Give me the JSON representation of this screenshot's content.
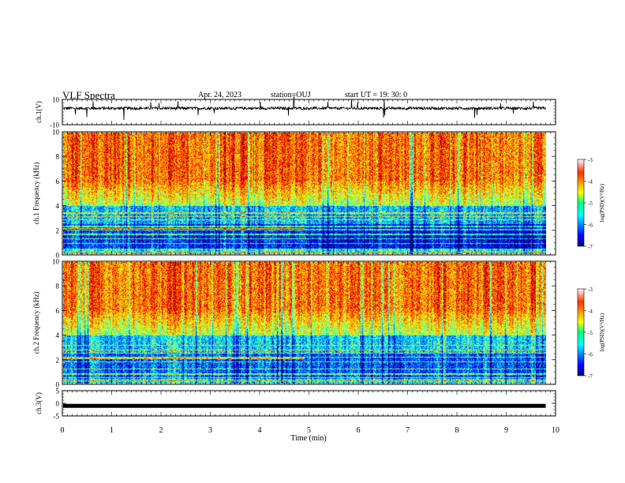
{
  "header": {
    "title": "VLF Spectra",
    "date": "Apr. 24, 2023",
    "station": "station=OUJ",
    "start": "start  UT =   19: 30: 0"
  },
  "chart_data": [
    {
      "type": "line",
      "panel": "ch1-waveform",
      "ylabel": "ch.1(V)",
      "ylim": [
        -10,
        10
      ],
      "yticks": [
        "10",
        "-10"
      ],
      "xlim": [
        0,
        10
      ],
      "note_series": "noisy waveform centered near +3 V with amplitude about +/-2 V and sparse spikes"
    },
    {
      "type": "heatmap",
      "panel": "ch1-spectrogram",
      "ylabel": "ch.1 Frequency (kHz)",
      "ylim": [
        0,
        10
      ],
      "yticks": [
        "0",
        "2",
        "4",
        "6",
        "8",
        "10"
      ],
      "xlim": [
        0,
        10
      ],
      "data_end_min": 9.8,
      "colorbar": {
        "label": "log(PSD)(V²/Hz)",
        "range": [
          -7,
          -3
        ],
        "ticks": [
          "-3",
          "-4",
          "-5",
          "-6",
          "-7"
        ]
      }
    },
    {
      "type": "heatmap",
      "panel": "ch2-spectrogram",
      "ylabel": "ch.2 Frequency (kHz)",
      "ylim": [
        0,
        10
      ],
      "yticks": [
        "0",
        "2",
        "4",
        "6",
        "8",
        "10"
      ],
      "xlim": [
        0,
        10
      ],
      "data_end_min": 9.8,
      "colorbar": {
        "label": "log(PSD)(V²/Hz)",
        "range": [
          -7,
          -3
        ],
        "ticks": [
          "-3",
          "-4",
          "-5",
          "-6",
          "-7"
        ]
      }
    },
    {
      "type": "line",
      "panel": "ch3-waveform",
      "ylabel": "ch.3(V)",
      "ylim": [
        -5,
        5
      ],
      "yticks": [
        "5",
        "0",
        "-5"
      ],
      "xlim": [
        0,
        10
      ],
      "note_series": "constant near -1 V"
    }
  ],
  "xaxis": {
    "label": "Time  (min)",
    "ticks": [
      "0",
      "1",
      "2",
      "3",
      "4",
      "5",
      "6",
      "7",
      "8",
      "9",
      "10"
    ]
  }
}
